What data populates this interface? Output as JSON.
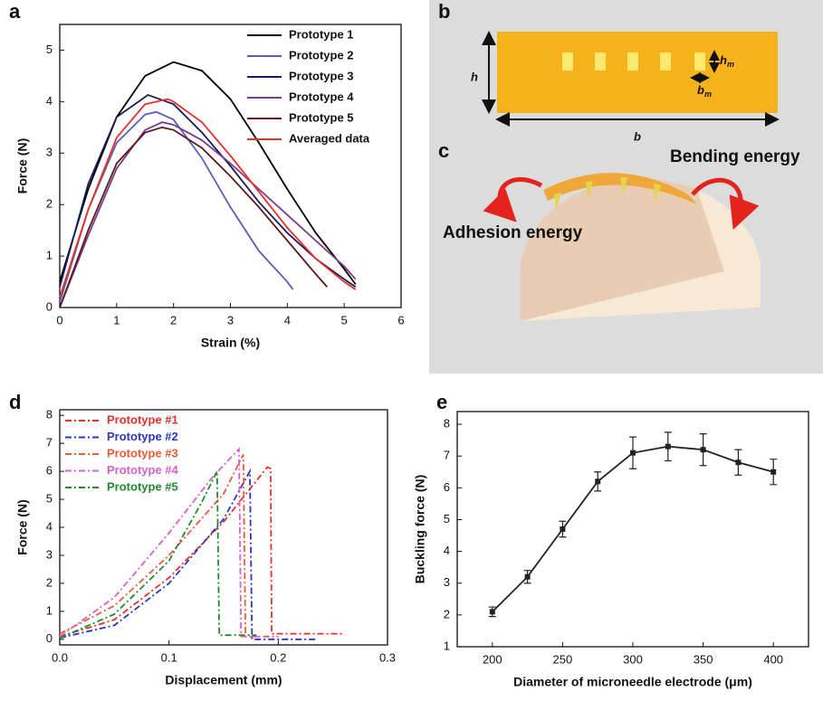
{
  "panel_labels": [
    "a",
    "b",
    "c",
    "d",
    "e"
  ],
  "diagram_b": {
    "h": "h",
    "h_m": "h",
    "h_m_sub": "m",
    "b_m": "b",
    "b_m_sub": "m",
    "b": "b"
  },
  "diagram_c": {
    "bending": "Bending energy",
    "adhesion": "Adhesion energy"
  },
  "chart_data": [
    {
      "type": "line",
      "xlabel": "Strain (%)",
      "ylabel": "Force (N)",
      "xlim": [
        0,
        6
      ],
      "ylim": [
        0,
        5.5
      ],
      "xticks": [
        0,
        1,
        2,
        3,
        4,
        5,
        6
      ],
      "yticks": [
        0,
        1,
        2,
        3,
        4,
        5
      ],
      "legend": "upper right",
      "series": [
        {
          "name": "Prototype 1",
          "color": "#000000",
          "x": [
            0,
            0.5,
            1,
            1.5,
            2,
            2.5,
            3,
            3.5,
            4,
            4.5,
            5,
            5.2
          ],
          "values": [
            0.5,
            2.3,
            3.7,
            4.5,
            4.77,
            4.6,
            4.05,
            3.2,
            2.3,
            1.45,
            0.75,
            0.45
          ]
        },
        {
          "name": "Prototype 2",
          "color": "#5a5fb5",
          "x": [
            0,
            0.5,
            1,
            1.5,
            1.7,
            2,
            2.5,
            3,
            3.5,
            4,
            4.1
          ],
          "values": [
            0.1,
            1.9,
            3.2,
            3.75,
            3.8,
            3.65,
            2.9,
            1.95,
            1.1,
            0.5,
            0.35
          ]
        },
        {
          "name": "Prototype 3",
          "color": "#1a1a5e",
          "x": [
            0,
            0.5,
            1,
            1.55,
            2,
            2.5,
            3,
            3.5,
            4,
            4.5,
            5,
            5.2
          ],
          "values": [
            0.4,
            2.4,
            3.7,
            4.13,
            3.95,
            3.4,
            2.75,
            2.05,
            1.45,
            0.95,
            0.55,
            0.4
          ]
        },
        {
          "name": "Prototype 4",
          "color": "#7b3b8a",
          "x": [
            0,
            0.5,
            1,
            1.5,
            1.8,
            2,
            2.5,
            3,
            3.5,
            4,
            4.5,
            5,
            5.2
          ],
          "values": [
            0,
            1.4,
            2.7,
            3.45,
            3.6,
            3.55,
            3.25,
            2.8,
            2.3,
            1.8,
            1.3,
            0.8,
            0.55
          ]
        },
        {
          "name": "Prototype 5",
          "color": "#5c1a1a",
          "x": [
            0,
            0.5,
            1,
            1.5,
            1.8,
            2,
            2.5,
            3,
            3.5,
            4,
            4.5,
            4.7
          ],
          "values": [
            0,
            1.5,
            2.8,
            3.4,
            3.5,
            3.45,
            3.1,
            2.55,
            1.95,
            1.3,
            0.65,
            0.4
          ]
        },
        {
          "name": "Averaged data",
          "color": "#e8302a",
          "x": [
            0,
            0.5,
            1,
            1.5,
            1.9,
            2,
            2.5,
            3,
            3.5,
            4,
            4.5,
            5,
            5.2
          ],
          "values": [
            0.2,
            1.9,
            3.3,
            3.95,
            4.05,
            4.0,
            3.6,
            2.95,
            2.25,
            1.55,
            0.95,
            0.5,
            0.35
          ]
        }
      ]
    },
    {
      "type": "line",
      "xlabel": "Displacement (mm)",
      "ylabel": "Force (N)",
      "xlim": [
        0,
        0.3
      ],
      "ylim": [
        -0.2,
        8.2
      ],
      "xticks": [
        {
          "value": 0,
          "label": "0.0"
        },
        0.1,
        0.2,
        0.3
      ],
      "yticks": [
        0,
        1,
        2,
        3,
        4,
        5,
        6,
        7,
        8
      ],
      "legend": "upper left",
      "linestyle": "dashdot",
      "series": [
        {
          "name": "Prototype #1",
          "color": "#e8302a",
          "x": [
            0,
            0.05,
            0.1,
            0.15,
            0.19,
            0.193,
            0.194,
            0.26
          ],
          "values": [
            0.1,
            0.7,
            2.2,
            4.2,
            6.15,
            6.1,
            0.2,
            0.2
          ]
        },
        {
          "name": "Prototype #2",
          "color": "#2b35c4",
          "x": [
            0,
            0.05,
            0.1,
            0.15,
            0.174,
            0.176,
            0.235
          ],
          "values": [
            0.05,
            0.5,
            2.0,
            4.3,
            6.0,
            0,
            0
          ]
        },
        {
          "name": "Prototype #3",
          "color": "#ef5a36",
          "x": [
            0,
            0.05,
            0.1,
            0.15,
            0.168,
            0.17,
            0.2
          ],
          "values": [
            0.2,
            1.2,
            3.0,
            5.2,
            6.6,
            0.1,
            0.1
          ]
        },
        {
          "name": "Prototype #4",
          "color": "#d75fd0",
          "x": [
            0,
            0.05,
            0.1,
            0.14,
            0.164,
            0.166,
            0.19
          ],
          "values": [
            0.1,
            1.5,
            3.8,
            5.8,
            6.8,
            0.1,
            0.1
          ]
        },
        {
          "name": "Prototype #5",
          "color": "#1f8a2e",
          "x": [
            0,
            0.05,
            0.1,
            0.13,
            0.144,
            0.146,
            0.18
          ],
          "values": [
            0.05,
            0.9,
            2.8,
            4.9,
            6.0,
            0.15,
            0.15
          ]
        }
      ]
    },
    {
      "type": "line",
      "xlabel": "Diameter of microneedle electrode (μm)",
      "ylabel": "Buckling force (N)",
      "xlim": [
        175,
        425
      ],
      "ylim": [
        1,
        8.4
      ],
      "xticks": [
        200,
        250,
        300,
        350,
        400
      ],
      "yticks": [
        1,
        2,
        3,
        4,
        5,
        6,
        7,
        8
      ],
      "markers": true,
      "series": [
        {
          "color": "#222222",
          "x": [
            200,
            225,
            250,
            275,
            300,
            325,
            350,
            375,
            400
          ],
          "values": [
            2.1,
            3.2,
            4.7,
            6.2,
            7.1,
            7.3,
            7.2,
            6.8,
            6.5
          ],
          "errors": [
            0.15,
            0.2,
            0.25,
            0.3,
            0.5,
            0.45,
            0.5,
            0.4,
            0.4
          ]
        }
      ]
    }
  ]
}
